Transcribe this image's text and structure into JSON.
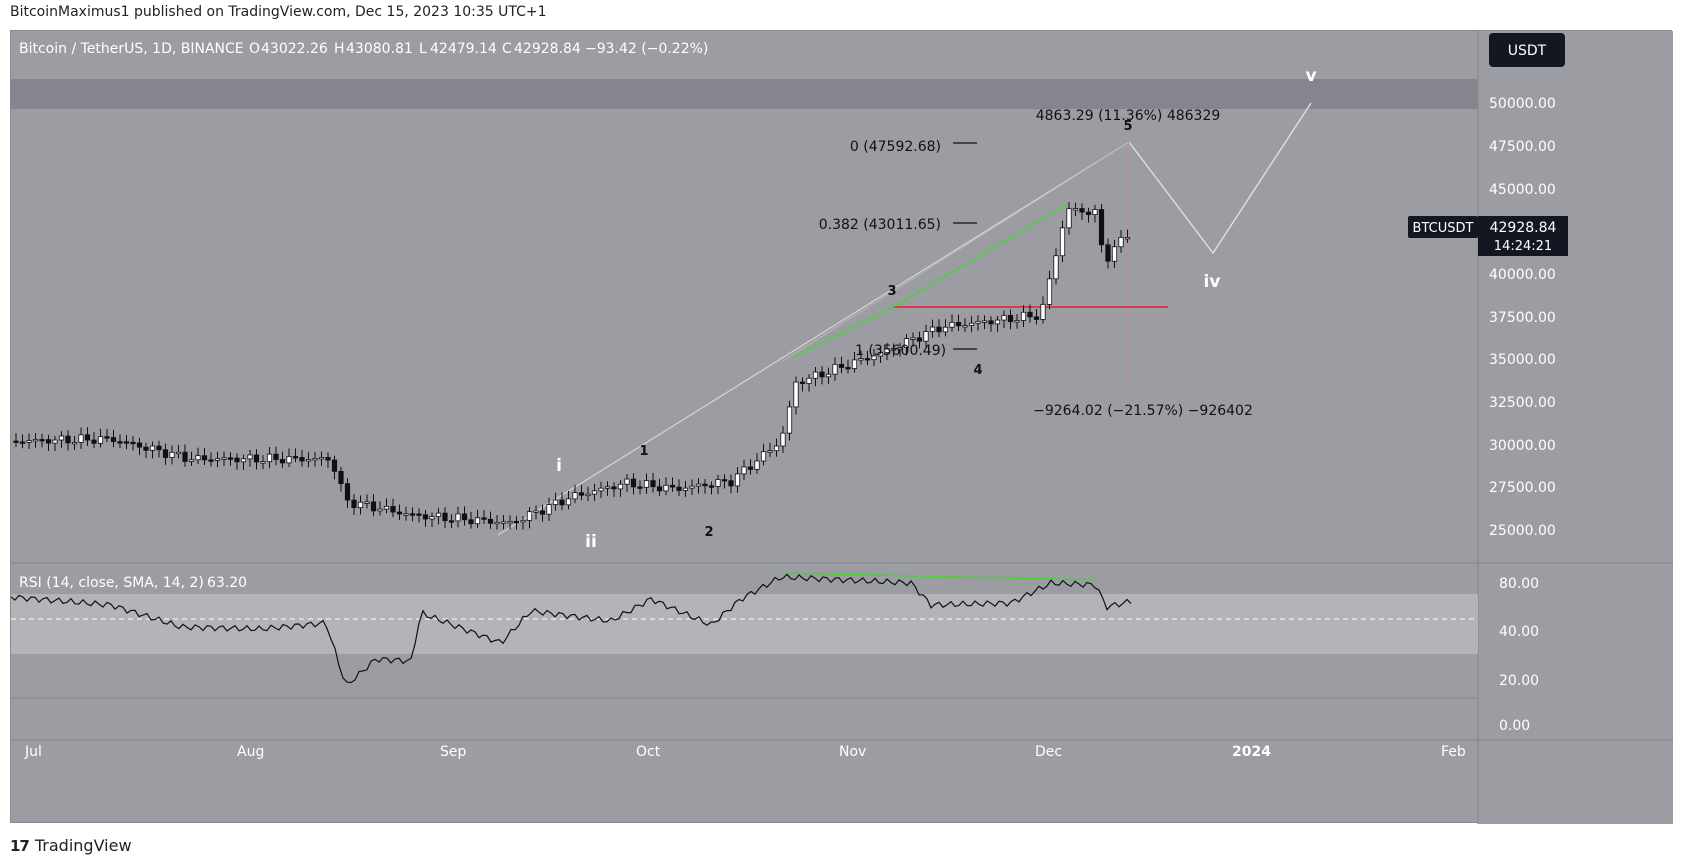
{
  "publisher_line": "BitcoinMaximus1 published on TradingView.com, Dec 15, 2023 10:35 UTC+1",
  "header": {
    "symbol": "Bitcoin / TetherUS, 1D, BINANCE",
    "open_label": "O",
    "open": "43022.26",
    "high_label": "H",
    "high": "43080.81",
    "low_label": "L",
    "low": "42479.14",
    "close_label": "C",
    "close": "42928.84",
    "change": "−93.42 (−0.22%)"
  },
  "currency_button": "USDT",
  "price_axis": [
    "50000.00",
    "47500.00",
    "45000.00",
    "42500.00",
    "40000.00",
    "37500.00",
    "35000.00",
    "32500.00",
    "30000.00",
    "27500.00",
    "25000.00"
  ],
  "last_price": {
    "ticker": "BTCUSDT",
    "price": "42928.84",
    "countdown": "14:24:21"
  },
  "time_axis": [
    "Jul",
    "Aug",
    "Sep",
    "Oct",
    "Nov",
    "Dec",
    "2024",
    "Feb"
  ],
  "rsi": {
    "label": "RSI (14, close, SMA, 14, 2)",
    "value": "63.20",
    "axis": [
      "80.00",
      "40.00",
      "20.00",
      "0.00"
    ]
  },
  "annotations": {
    "fib_0": "0 (47592.68)",
    "fib_0382": "0.382 (43011.65)",
    "fib_1": "1 (35600.49)",
    "measure_up": "4863.29 (11.36%) 486329",
    "measure_down": "−9264.02 (−21.57%) −926402",
    "wave_i": "i",
    "wave_ii": "ii",
    "wave_iv": "iv",
    "wave_v": "v",
    "wave_1": "1",
    "wave_2": "2",
    "wave_3": "3",
    "wave_4": "4",
    "wave_5": "5"
  },
  "footer": {
    "logo": "17",
    "brand": "TradingView"
  },
  "colors": {
    "panel_bg": "#9c9ca3",
    "resistance_band": "#85868d",
    "rsi_band": "#b3b3ba",
    "bull_candle": "#ffffff",
    "bear_candle": "#111111",
    "divergence": "#4cd137",
    "support_line": "#e8222a",
    "projection": "#e0e0e0"
  }
}
